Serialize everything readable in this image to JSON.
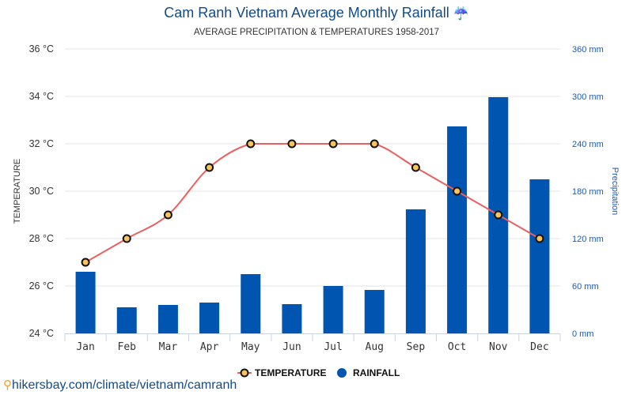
{
  "header": {
    "title": "Cam Ranh Vietnam Average Monthly Rainfall",
    "title_icon": "umbrella-rain-icon",
    "subtitle": "AVERAGE PRECIPITATION & TEMPERATURES 1958-2017"
  },
  "footer": {
    "icon": "map-pin-icon",
    "link": "hikersbay.com/climate/vietnam/camranh"
  },
  "colors": {
    "bar": "#0055b0",
    "line": "#ea6060",
    "marker_fill": "#f7c35b",
    "marker_stroke": "#111111",
    "grid": "#e3e3e3",
    "title": "#134b85"
  },
  "chart_data": {
    "type": "bar",
    "title": "Cam Ranh Vietnam Average Monthly Rainfall",
    "subtitle": "AVERAGE PRECIPITATION & TEMPERATURES 1958-2017",
    "categories": [
      "Jan",
      "Feb",
      "Mar",
      "Apr",
      "May",
      "Jun",
      "Jul",
      "Aug",
      "Sep",
      "Oct",
      "Nov",
      "Dec"
    ],
    "series": [
      {
        "name": "TEMPERATURE",
        "type": "line",
        "axis": "left",
        "unit": "°C",
        "values": [
          27,
          28,
          29,
          31,
          32,
          32,
          32,
          32,
          31,
          30,
          29,
          28
        ]
      },
      {
        "name": "RAINFALL",
        "type": "bar",
        "axis": "right",
        "unit": "mm",
        "values": [
          78,
          33,
          36,
          39,
          75,
          37,
          60,
          55,
          157,
          262,
          299,
          195
        ]
      }
    ],
    "ylabel_left": "TEMPERATURE",
    "ylabel_right": "Precipitation",
    "ylim_left": [
      24,
      36
    ],
    "ylim_right": [
      0,
      360
    ],
    "yticks_left": [
      "24 °C",
      "26 °C",
      "28 °C",
      "30 °C",
      "32 °C",
      "34 °C",
      "36 °C"
    ],
    "yticks_right": [
      "0 mm",
      "60 mm",
      "120 mm",
      "180 mm",
      "240 mm",
      "300 mm",
      "360 mm"
    ],
    "grid": true,
    "legend": {
      "placement": "bottom-center",
      "entries": [
        "TEMPERATURE",
        "RAINFALL"
      ]
    }
  }
}
